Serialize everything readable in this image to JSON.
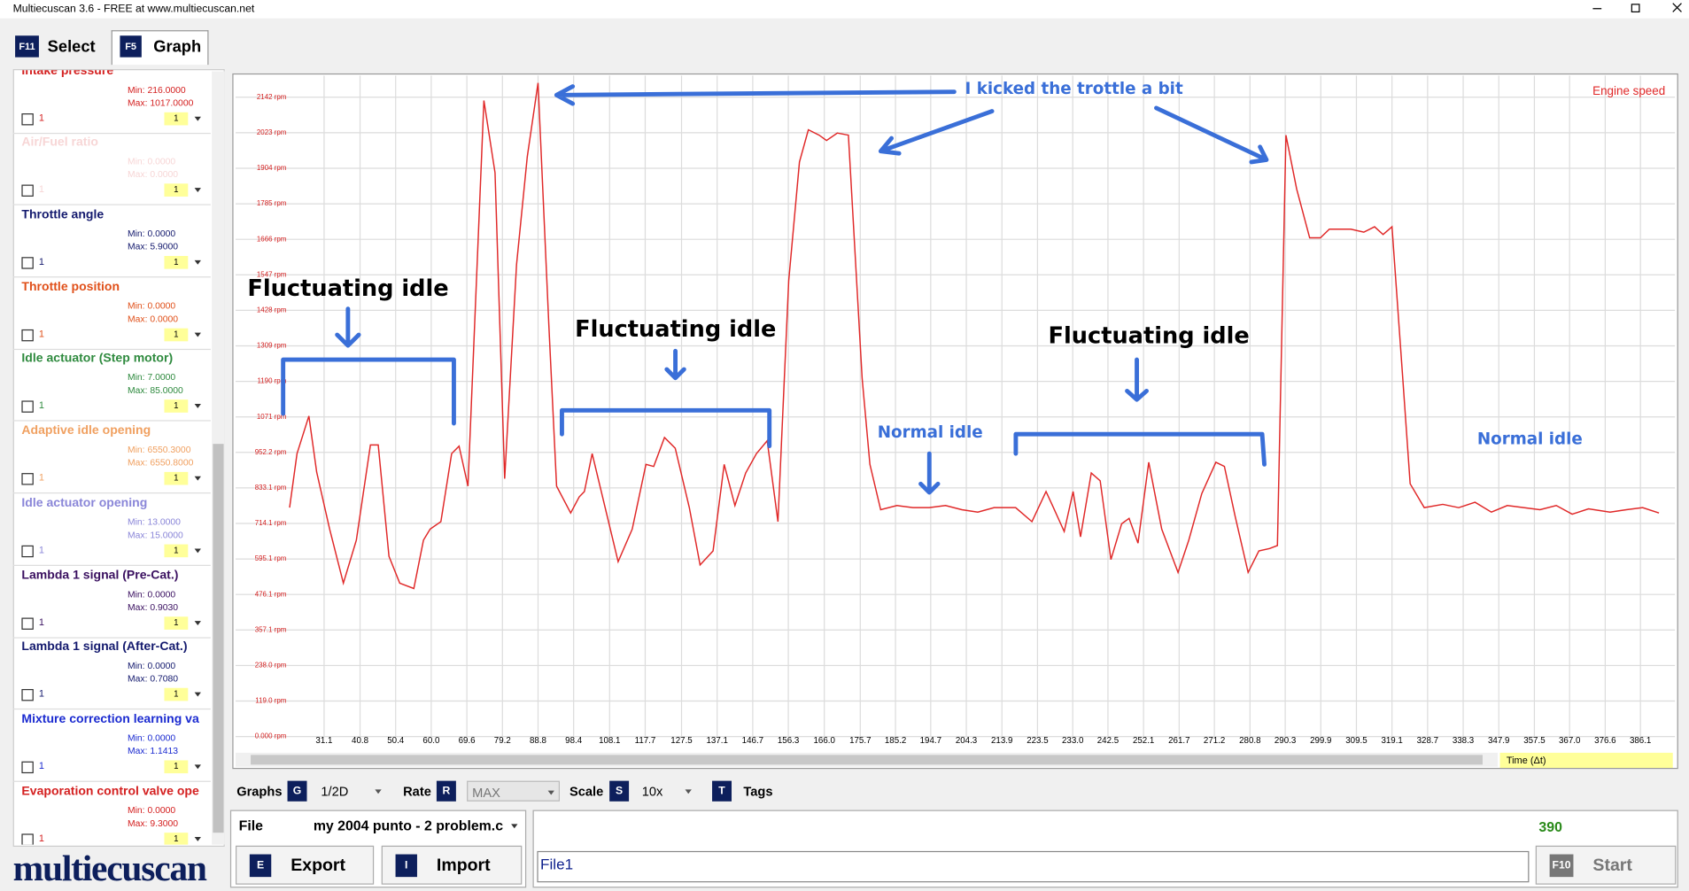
{
  "window": {
    "title": "Multiecuscan 3.6 - FREE at www.multiecuscan.net"
  },
  "tabs": [
    {
      "key": "F11",
      "label": "Select"
    },
    {
      "key": "F5",
      "label": "Graph"
    }
  ],
  "parameters": [
    {
      "name": "Intake pressure",
      "color": "#d42020",
      "min": "Min: 216.0000",
      "max": "Max: 1017.0000",
      "check": "1",
      "scale": "1"
    },
    {
      "name": "Air/Fuel ratio",
      "color": "#f7d6d6",
      "min": "Min: 0.0000",
      "max": "Max: 0.0000",
      "check": "1",
      "scale": "1"
    },
    {
      "name": "Throttle angle",
      "color": "#141a6e",
      "min": "Min: 0.0000",
      "max": "Max: 5.9000",
      "check": "1",
      "scale": "1"
    },
    {
      "name": "Throttle position",
      "color": "#e0501a",
      "min": "Min: 0.0000",
      "max": "Max: 0.0000",
      "check": "1",
      "scale": "1"
    },
    {
      "name": "Idle actuator (Step motor)",
      "color": "#2e8a3e",
      "min": "Min: 7.0000",
      "max": "Max: 85.0000",
      "check": "1",
      "scale": "1"
    },
    {
      "name": "Adaptive idle opening",
      "color": "#f0a060",
      "min": "Min: 6550.3000",
      "max": "Max: 6550.8000",
      "check": "1",
      "scale": "1"
    },
    {
      "name": "Idle actuator opening",
      "color": "#8a86d8",
      "min": "Min: 13.0000",
      "max": "Max: 15.0000",
      "check": "1",
      "scale": "1"
    },
    {
      "name": "Lambda 1 signal (Pre-Cat.)",
      "color": "#3a1060",
      "min": "Min: 0.0000",
      "max": "Max: 0.9030",
      "check": "1",
      "scale": "1"
    },
    {
      "name": "Lambda 1 signal (After-Cat.)",
      "color": "#141a6e",
      "min": "Min: 0.0000",
      "max": "Max: 0.7080",
      "check": "1",
      "scale": "1"
    },
    {
      "name": "Mixture correction learning va",
      "color": "#1a2ad0",
      "min": "Min: 0.0000",
      "max": "Max: 1.1413",
      "check": "1",
      "scale": "1"
    },
    {
      "name": "Evaporation control valve ope",
      "color": "#d42020",
      "min": "Min: 0.0000",
      "max": "Max: 9.3000",
      "check": "1",
      "scale": "1"
    }
  ],
  "chart_data": {
    "type": "line",
    "grid": true,
    "x": [
      21.8,
      23.8,
      27.0,
      29.1,
      32.6,
      36.3,
      39.8,
      43.6,
      45.7,
      48.6,
      51.5,
      55.3,
      57.9,
      59.7,
      62.6,
      65.5,
      67.5,
      69.9,
      74.2,
      77.2,
      79.8,
      83.0,
      85.9,
      88.8,
      91.7,
      93.8,
      97.6,
      99.9,
      101.3,
      103.4,
      106.9,
      110.4,
      114.2,
      117.9,
      120.0,
      122.9,
      125.8,
      129.6,
      132.5,
      136.0,
      139.0,
      141.9,
      144.8,
      147.7,
      150.6,
      153.5,
      156.4,
      159.3,
      161.7,
      164.6,
      166.6,
      169.5,
      172.5,
      176.2,
      178.3,
      181.2,
      185.6,
      189.9,
      194.3,
      198.7,
      203.1,
      207.4,
      211.8,
      217.6,
      222.0,
      225.8,
      227.8,
      230.7,
      233.1,
      235.1,
      238.0,
      240.4,
      243.3,
      246.2,
      248.2,
      250.6,
      253.5,
      257.0,
      261.4,
      264.3,
      267.8,
      271.6,
      273.9,
      276.8,
      280.3,
      283.2,
      286.1,
      288.2,
      290.5,
      293.4,
      296.9,
      299.8,
      302.2,
      308.0,
      311.5,
      314.4,
      316.7,
      319.1,
      322.0,
      324.0,
      327.8,
      332.8,
      337.1,
      341.5,
      345.9,
      350.2,
      354.6,
      359.0,
      363.4,
      367.7,
      372.1,
      377.9,
      382.3,
      386.7,
      391.1
    ],
    "series": [
      {
        "name": "Engine speed",
        "color": "#e02828",
        "values": [
          767,
          948,
          1074,
          886,
          695,
          514,
          658,
          977,
          977,
          604,
          514,
          496,
          658,
          695,
          720,
          948,
          973,
          839,
          2131,
          1889,
          864,
          1581,
          1943,
          2190,
          1382,
          839,
          749,
          803,
          821,
          948,
          767,
          586,
          695,
          912,
          905,
          1002,
          966,
          767,
          575,
          622,
          912,
          774,
          883,
          948,
          991,
          720,
          1527,
          1925,
          2033,
          2015,
          1997,
          2022,
          2015,
          1201,
          912,
          760,
          774,
          767,
          767,
          774,
          760,
          752,
          767,
          767,
          720,
          821,
          767,
          687,
          821,
          669,
          883,
          857,
          593,
          713,
          731,
          648,
          919,
          695,
          550,
          658,
          814,
          919,
          905,
          738,
          550,
          622,
          630,
          640,
          2015,
          1834,
          1671,
          1671,
          1700,
          1700,
          1690,
          1708,
          1682,
          1708,
          1201,
          847,
          767,
          778,
          767,
          785,
          752,
          774,
          767,
          760,
          774,
          745,
          763,
          752,
          760,
          767,
          749
        ]
      }
    ],
    "xlim": [
      21.8,
      392.5
    ],
    "ylim": [
      0,
      2200
    ],
    "xticks": [
      31.1,
      40.8,
      50.4,
      {
        "value": 60,
        "label": "60.0"
      },
      69.6,
      79.2,
      88.8,
      98.4,
      108.1,
      117.7,
      127.5,
      137.1,
      146.7,
      156.3,
      {
        "value": 166,
        "label": "166.0"
      },
      175.7,
      185.2,
      194.7,
      204.3,
      213.9,
      223.5,
      {
        "value": 233,
        "label": "233.0"
      },
      242.5,
      252.1,
      261.7,
      271.2,
      280.8,
      290.3,
      299.9,
      309.5,
      319.1,
      328.7,
      338.3,
      347.9,
      357.5,
      {
        "value": 367,
        "label": "367.0"
      },
      376.6,
      386.1
    ],
    "yticks": [
      {
        "value": 0,
        "label": "0.000 rpm"
      },
      {
        "value": 119,
        "label": "119.0 rpm"
      },
      {
        "value": 238,
        "label": "238.0 rpm"
      },
      {
        "value": 357.1,
        "label": "357.1 rpm"
      },
      {
        "value": 476.1,
        "label": "476.1 rpm"
      },
      {
        "value": 595.1,
        "label": "595.1 rpm"
      },
      {
        "value": 714.1,
        "label": "714.1 rpm"
      },
      {
        "value": 833.1,
        "label": "833.1 rpm"
      },
      {
        "value": 952.2,
        "label": "952.2 rpm"
      },
      {
        "value": 1071,
        "label": "1071 rpm"
      },
      {
        "value": 1190,
        "label": "1190 rpm"
      },
      {
        "value": 1309,
        "label": "1309 rpm"
      },
      {
        "value": 1428,
        "label": "1428 rpm"
      },
      {
        "value": 1547,
        "label": "1547 rpm"
      },
      {
        "value": 1666,
        "label": "1666 rpm"
      },
      {
        "value": 1785,
        "label": "1785 rpm"
      },
      {
        "value": 1904,
        "label": "1904 rpm"
      },
      {
        "value": 2023,
        "label": "2023 rpm"
      },
      {
        "value": 2142,
        "label": "2142 rpm"
      }
    ],
    "annotations": [
      "I kicked the trottle a bit",
      "Fluctuating idle",
      "Fluctuating idle",
      "Fluctuating idle",
      "Normal idle",
      "Normal idle"
    ]
  },
  "time_selector": "Time (Δt)",
  "toolbar": {
    "graphs": {
      "label": "Graphs",
      "key": "G",
      "value": "1/2D"
    },
    "rate": {
      "label": "Rate",
      "key": "R",
      "value": "MAX"
    },
    "scale": {
      "label": "Scale",
      "key": "S",
      "value": "10x"
    },
    "tags": {
      "label": "Tags",
      "key": "T"
    }
  },
  "file": {
    "label": "File",
    "value": "my 2004 punto - 2 problem.c"
  },
  "buttons": {
    "export": {
      "key": "E",
      "label": "Export"
    },
    "import": {
      "key": "I",
      "label": "Import"
    },
    "start": {
      "key": "F10",
      "label": "Start"
    }
  },
  "log": {
    "name": "File1",
    "count": "390"
  },
  "logo": "multiecuscan"
}
